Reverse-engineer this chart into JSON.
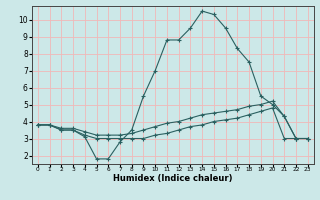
{
  "xlabel": "Humidex (Indice chaleur)",
  "background_color": "#cce8e8",
  "grid_color": "#f0b8b8",
  "line_color": "#2a6060",
  "xlim": [
    -0.5,
    23.5
  ],
  "ylim": [
    1.5,
    10.8
  ],
  "xtick_labels": [
    "0",
    "1",
    "2",
    "3",
    "4",
    "5",
    "6",
    "7",
    "8",
    "9",
    "10",
    "11",
    "12",
    "13",
    "14",
    "15",
    "16",
    "17",
    "18",
    "19",
    "20",
    "21",
    "22",
    "23"
  ],
  "yticks": [
    2,
    3,
    4,
    5,
    6,
    7,
    8,
    9,
    10
  ],
  "line1_x": [
    0,
    1,
    2,
    3,
    4,
    5,
    6,
    7,
    8,
    9,
    10,
    11,
    12,
    13,
    14,
    15,
    16,
    17,
    18,
    19,
    20,
    21,
    22,
    23
  ],
  "line1_y": [
    3.8,
    3.8,
    3.5,
    3.5,
    3.1,
    1.8,
    1.8,
    2.8,
    3.5,
    5.5,
    7.0,
    8.8,
    8.8,
    9.5,
    10.5,
    10.3,
    9.5,
    8.3,
    7.5,
    5.5,
    5.0,
    4.3,
    3.0,
    3.0
  ],
  "line2_x": [
    0,
    1,
    2,
    3,
    4,
    5,
    6,
    7,
    8,
    9,
    10,
    11,
    12,
    13,
    14,
    15,
    16,
    17,
    18,
    19,
    20,
    21,
    22,
    23
  ],
  "line2_y": [
    3.8,
    3.8,
    3.6,
    3.6,
    3.4,
    3.2,
    3.2,
    3.2,
    3.3,
    3.5,
    3.7,
    3.9,
    4.0,
    4.2,
    4.4,
    4.5,
    4.6,
    4.7,
    4.9,
    5.0,
    5.2,
    4.3,
    3.0,
    3.0
  ],
  "line3_x": [
    0,
    1,
    2,
    3,
    4,
    5,
    6,
    7,
    8,
    9,
    10,
    11,
    12,
    13,
    14,
    15,
    16,
    17,
    18,
    19,
    20,
    21,
    22,
    23
  ],
  "line3_y": [
    3.8,
    3.8,
    3.5,
    3.5,
    3.2,
    3.0,
    3.0,
    3.0,
    3.0,
    3.0,
    3.2,
    3.3,
    3.5,
    3.7,
    3.8,
    4.0,
    4.1,
    4.2,
    4.4,
    4.6,
    4.8,
    3.0,
    3.0,
    3.0
  ]
}
